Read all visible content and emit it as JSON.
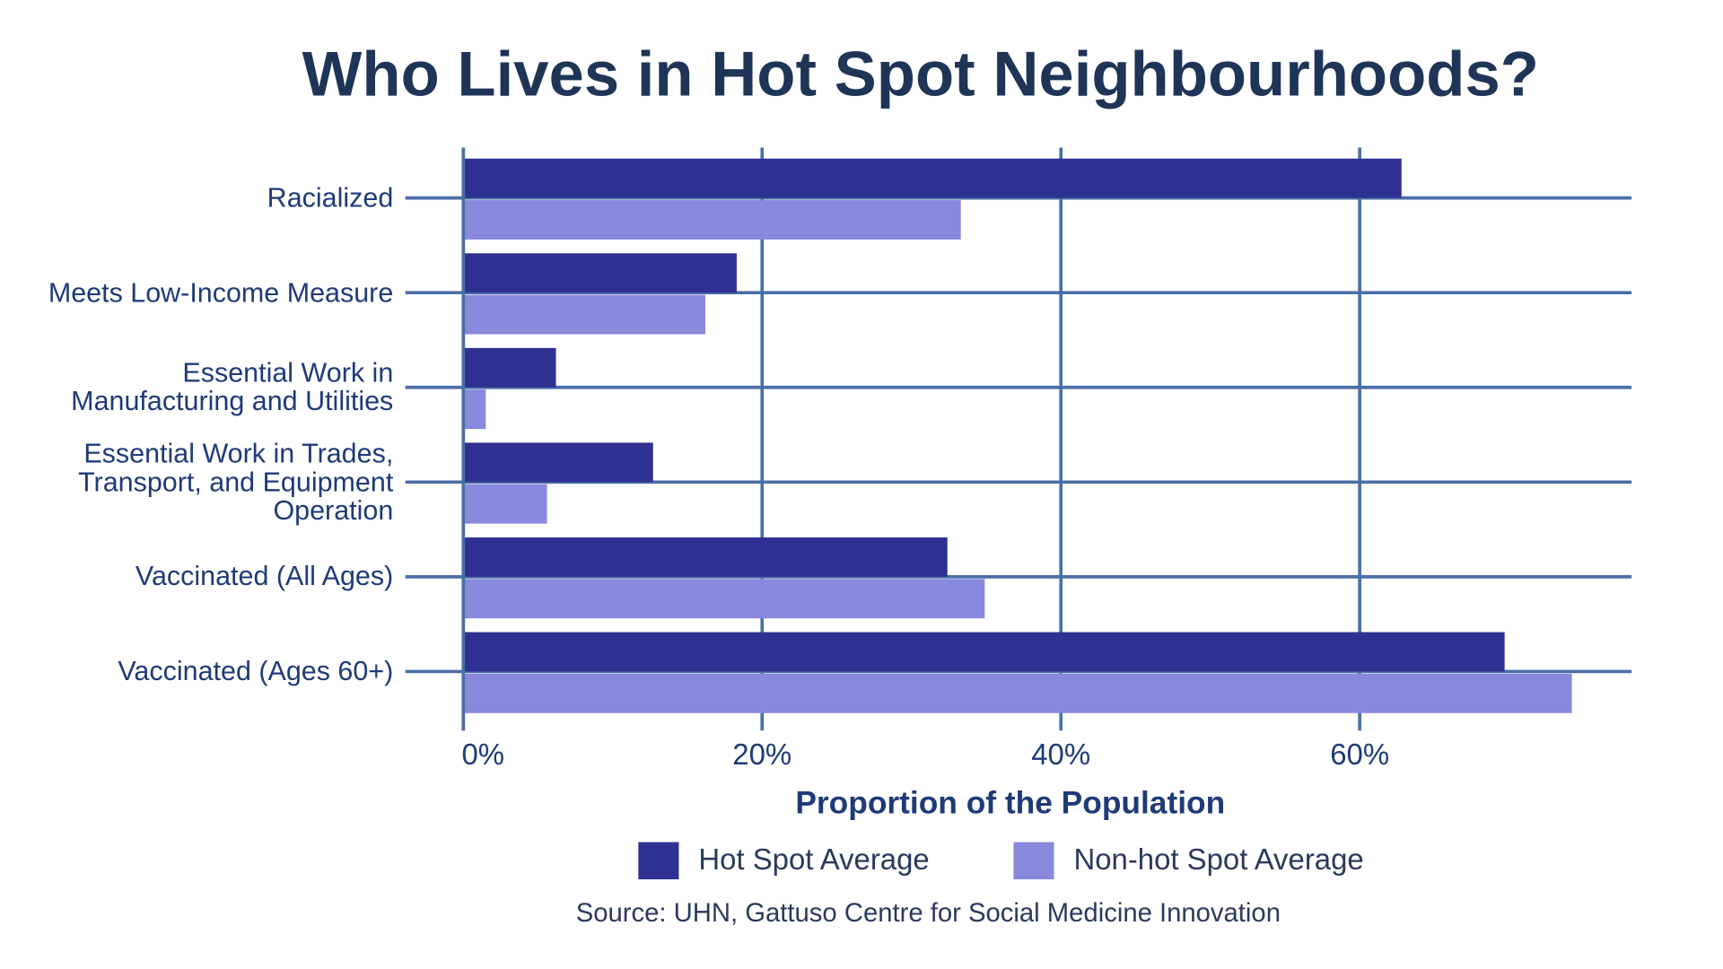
{
  "chart_data": {
    "type": "barh",
    "title": "Who Lives in Hot Spot Neighbourhoods?",
    "x_label": "Proportion of the Population",
    "source": "Source: UHN, Gattuso Centre for Social Medicine Innovation",
    "categories": [
      "Racialized",
      "Meets Low-Income Measure",
      "Essential Work in Manufacturing and Utilities",
      "Essential Work in Trades, Transport, and Equipment Operation",
      "Vaccinated (All Ages)",
      "Vaccinated (Ages 60+)"
    ],
    "series": [
      {
        "name": "Hot Spot Average",
        "color": "#2e3192",
        "values": [
          62.8,
          18.3,
          6.2,
          12.7,
          32.4,
          69.7
        ]
      },
      {
        "name": "Non-hot Spot Average",
        "color": "#8888dd",
        "values": [
          33.3,
          16.2,
          1.5,
          5.6,
          34.9,
          74.2
        ]
      }
    ],
    "xlim": [
      0,
      78.2
    ],
    "xticks": [
      {
        "value": 0,
        "label": "0%"
      },
      {
        "value": 20,
        "label": "20%"
      },
      {
        "value": 40,
        "label": "40%"
      },
      {
        "value": 60,
        "label": "60%"
      }
    ],
    "grid": true
  }
}
